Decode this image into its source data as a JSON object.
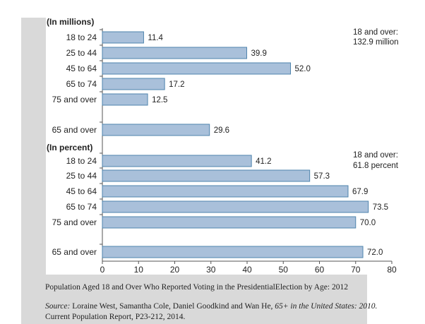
{
  "chart_data": [
    {
      "type": "bar",
      "orientation": "horizontal",
      "section_label": "(In millions)",
      "categories": [
        "18 to 24",
        "25 to 44",
        "45 to 64",
        "65 to 74",
        "75 and over",
        "65 and over"
      ],
      "values": [
        11.4,
        39.9,
        52.0,
        17.2,
        12.5,
        29.6
      ],
      "value_labels": [
        "11.4",
        "39.9",
        "52.0",
        "17.2",
        "12.5",
        "29.6"
      ],
      "annotation": [
        "18 and over:",
        "132.9 million"
      ]
    },
    {
      "type": "bar",
      "orientation": "horizontal",
      "section_label": "(In percent)",
      "categories": [
        "18 to 24",
        "25 to 44",
        "45 to 64",
        "65 to 74",
        "75 and over",
        "65 and over"
      ],
      "values": [
        41.2,
        57.3,
        67.9,
        73.5,
        70.0,
        72.0
      ],
      "value_labels": [
        "41.2",
        "57.3",
        "67.9",
        "73.5",
        "70.0",
        "72.0"
      ],
      "annotation": [
        "18 and over:",
        "61.8 percent"
      ]
    }
  ],
  "axis": {
    "xlim": [
      0,
      80
    ],
    "ticks": [
      "0",
      "10",
      "20",
      "30",
      "40",
      "50",
      "60",
      "70",
      "80"
    ]
  },
  "colors": {
    "bar_fill": "#a9c0da",
    "bar_stroke": "#4f84ad"
  },
  "caption": {
    "title": "Population Aged 18 and Over Who Reported Voting in the PresidentialElection by Age: 2012",
    "source_label": "Source:",
    "source_authors": " Loraine West, Samantha Cole, Daniel Goodkind and Wan He, ",
    "source_title": "65+ in the United States: 2010.",
    "source_line2": "Current Population Report, P23-212, 2014."
  }
}
